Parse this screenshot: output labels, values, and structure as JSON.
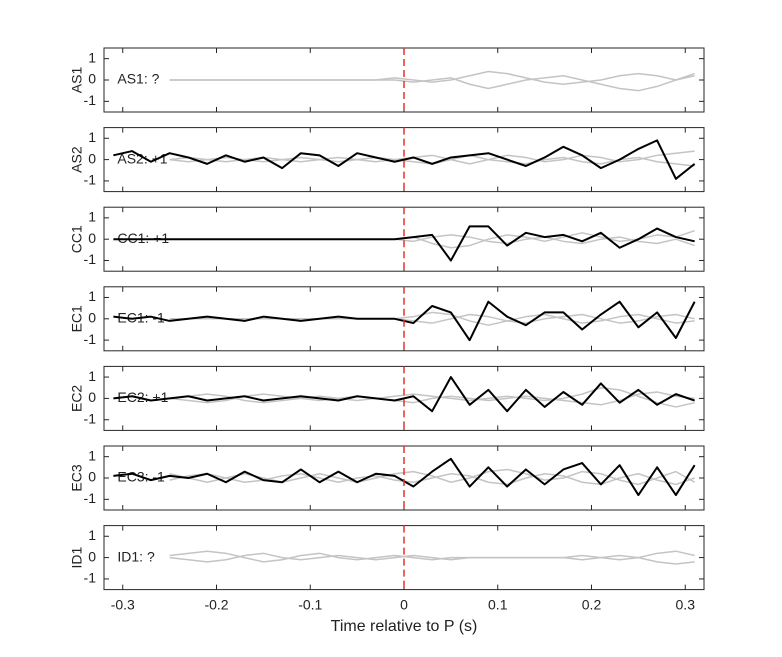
{
  "chart_data": {
    "type": "line",
    "xlabel": "Time relative to P (s)",
    "x": [
      -0.31,
      -0.29,
      -0.27,
      -0.25,
      -0.23,
      -0.21,
      -0.19,
      -0.17,
      -0.15,
      -0.13,
      -0.11,
      -0.09,
      -0.07,
      -0.05,
      -0.03,
      -0.01,
      0.01,
      0.03,
      0.05,
      0.07,
      0.09,
      0.11,
      0.13,
      0.15,
      0.17,
      0.19,
      0.21,
      0.23,
      0.25,
      0.27,
      0.29,
      0.31
    ],
    "xlim": [
      -0.32,
      0.32
    ],
    "xticks": [
      -0.3,
      -0.2,
      -0.1,
      0,
      0.1,
      0.2,
      0.3
    ],
    "ylim": [
      -1.5,
      1.5
    ],
    "yticks": [
      -1,
      0,
      1
    ],
    "reference_line": {
      "x": 0,
      "color": "#e8302a"
    },
    "panels": [
      {
        "ylabel": "AS1",
        "annotation": {
          "text": "AS1: ?",
          "color": "#9a9a9a"
        },
        "series": [
          {
            "color": "#c4c4c4",
            "values": [
              null,
              null,
              null,
              0,
              0,
              0,
              0,
              0,
              0,
              0,
              0,
              0,
              0,
              0,
              0,
              0.1,
              0,
              -0.1,
              0,
              0.2,
              0.4,
              0.3,
              0.1,
              -0.1,
              -0.2,
              -0.1,
              0,
              0.2,
              0.3,
              0.2,
              0,
              0.2
            ]
          },
          {
            "color": "#c4c4c4",
            "values": [
              null,
              null,
              null,
              0,
              0,
              0,
              0,
              0,
              0,
              0,
              0,
              0,
              0,
              0,
              0,
              0,
              -0.1,
              0,
              0.1,
              -0.2,
              -0.4,
              -0.2,
              0,
              0.1,
              0.2,
              0,
              -0.2,
              -0.4,
              -0.5,
              -0.3,
              0,
              0.3
            ]
          }
        ]
      },
      {
        "ylabel": "AS2",
        "annotation": {
          "text": "AS2: +1",
          "color": "#c0141b"
        },
        "series": [
          {
            "color": "#c4c4c4",
            "values": [
              null,
              null,
              null,
              0,
              0.1,
              0,
              -0.1,
              0,
              0.1,
              0,
              -0.1,
              0,
              0.1,
              0,
              -0.1,
              0,
              0.1,
              0.2,
              0,
              -0.2,
              0,
              0.2,
              0.1,
              -0.1,
              0,
              0.2,
              0.1,
              -0.1,
              0,
              0.2,
              0.3,
              0.4
            ]
          },
          {
            "color": "#c4c4c4",
            "values": [
              null,
              null,
              null,
              0,
              -0.1,
              0,
              0.1,
              0,
              -0.1,
              0,
              0.1,
              0,
              -0.1,
              0,
              0.1,
              0,
              -0.1,
              -0.2,
              0,
              0.2,
              0,
              -0.1,
              -0.2,
              0,
              0.1,
              -0.1,
              -0.2,
              0,
              0.1,
              -0.1,
              -0.2,
              -0.3
            ]
          },
          {
            "color": "#000000",
            "values": [
              0.2,
              0.4,
              -0.1,
              0.3,
              0.1,
              -0.2,
              0.2,
              -0.1,
              0.1,
              -0.4,
              0.3,
              0.2,
              -0.3,
              0.3,
              0.1,
              -0.1,
              0.1,
              -0.2,
              0.1,
              0.2,
              0.3,
              0,
              -0.3,
              0.1,
              0.6,
              0.2,
              -0.4,
              0,
              0.5,
              0.9,
              -0.9,
              -0.2
            ]
          }
        ]
      },
      {
        "ylabel": "CC1",
        "annotation": {
          "text": "CC1: +1",
          "color": "#c0141b"
        },
        "series": [
          {
            "color": "#c4c4c4",
            "values": [
              null,
              null,
              null,
              0,
              0,
              0,
              0,
              0,
              0,
              0,
              0,
              0,
              0,
              0,
              0,
              0,
              0.1,
              -0.2,
              -0.4,
              -0.3,
              0,
              0.2,
              0.1,
              -0.1,
              0.1,
              0.3,
              0.1,
              -0.1,
              0,
              0.2,
              0.1,
              0.4
            ]
          },
          {
            "color": "#c4c4c4",
            "values": [
              null,
              null,
              null,
              0,
              0,
              0,
              0,
              0,
              0,
              0,
              0,
              0,
              0,
              0,
              0,
              0,
              -0.1,
              0.1,
              0.2,
              0.1,
              -0.1,
              -0.2,
              0,
              0.1,
              -0.1,
              -0.2,
              0,
              0.1,
              -0.1,
              -0.2,
              0,
              -0.3
            ]
          },
          {
            "color": "#000000",
            "values": [
              0,
              0,
              0,
              0,
              0,
              0,
              0,
              0,
              0,
              0,
              0,
              0,
              0,
              0,
              0,
              0,
              0.1,
              0.2,
              -1,
              0.6,
              0.6,
              -0.3,
              0.3,
              0.1,
              0.2,
              -0.1,
              0.3,
              -0.4,
              0,
              0.5,
              0.1,
              -0.1
            ]
          }
        ]
      },
      {
        "ylabel": "EC1",
        "annotation": {
          "text": "EC1: -1",
          "color": "#1a1aa6"
        },
        "series": [
          {
            "color": "#c4c4c4",
            "values": [
              null,
              null,
              null,
              0,
              0,
              0,
              0,
              0,
              0,
              0,
              0,
              0,
              0,
              0,
              0,
              0,
              0.1,
              0.3,
              0.2,
              -0.1,
              -0.3,
              -0.1,
              0.1,
              0.2,
              0,
              -0.2,
              -0.1,
              0.1,
              0.2,
              0,
              -0.2,
              -0.1
            ]
          },
          {
            "color": "#c4c4c4",
            "values": [
              null,
              null,
              null,
              0,
              0,
              0,
              0,
              0,
              0,
              0,
              0,
              0,
              0,
              0,
              0,
              0,
              -0.1,
              -0.2,
              0,
              0.2,
              0.1,
              -0.1,
              -0.2,
              0,
              0.1,
              0.2,
              0,
              -0.2,
              -0.1,
              0.1,
              0.2,
              0
            ]
          },
          {
            "color": "#000000",
            "values": [
              0.1,
              0,
              0.1,
              -0.1,
              0,
              0.1,
              0,
              -0.1,
              0.1,
              0,
              -0.1,
              0,
              0.1,
              0,
              0,
              0,
              -0.2,
              0.6,
              0.3,
              -1,
              0.8,
              0.1,
              -0.3,
              0.3,
              0.3,
              -0.5,
              0.2,
              0.8,
              -0.4,
              0.3,
              -0.9,
              0.8
            ]
          }
        ]
      },
      {
        "ylabel": "EC2",
        "annotation": {
          "text": "EC2: +1",
          "color": "#c0141b"
        },
        "series": [
          {
            "color": "#c4c4c4",
            "values": [
              null,
              null,
              null,
              0,
              0.1,
              0.2,
              0.1,
              -0.1,
              -0.2,
              -0.1,
              0,
              0.1,
              0,
              -0.1,
              0,
              0.1,
              0.2,
              0.1,
              0,
              -0.1,
              0,
              0.1,
              0,
              -0.1,
              0,
              0.2,
              0.5,
              0.4,
              0.1,
              -0.2,
              -0.4,
              -0.2
            ]
          },
          {
            "color": "#c4c4c4",
            "values": [
              null,
              null,
              null,
              0,
              -0.1,
              -0.2,
              -0.1,
              0.1,
              0.2,
              0.1,
              0,
              -0.1,
              0,
              0.1,
              0,
              -0.1,
              -0.2,
              0,
              0.1,
              0,
              -0.1,
              0,
              0.1,
              0,
              -0.1,
              -0.2,
              -0.3,
              -0.1,
              0.2,
              0.3,
              0.1,
              0
            ]
          },
          {
            "color": "#000000",
            "values": [
              0,
              0.1,
              -0.1,
              0,
              0.1,
              -0.1,
              0,
              0.1,
              -0.1,
              0,
              0.1,
              0,
              -0.1,
              0.1,
              0,
              -0.1,
              0.1,
              -0.6,
              1,
              -0.3,
              0.4,
              -0.6,
              0.4,
              -0.4,
              0.3,
              -0.3,
              0.7,
              -0.2,
              0.4,
              -0.3,
              0.2,
              -0.1
            ]
          }
        ]
      },
      {
        "ylabel": "EC3",
        "annotation": {
          "text": "EC3: -1",
          "color": "#1a1aa6"
        },
        "series": [
          {
            "color": "#c4c4c4",
            "values": [
              null,
              null,
              null,
              0.2,
              0,
              -0.2,
              0,
              0.2,
              0,
              -0.2,
              0,
              0.2,
              0,
              -0.2,
              0,
              0.2,
              0.3,
              0.1,
              -0.2,
              0,
              0.3,
              0.4,
              0.2,
              -0.1,
              0,
              0.3,
              0.2,
              -0.1,
              -0.3,
              0,
              0.3,
              -0.2
            ]
          },
          {
            "color": "#c4c4c4",
            "values": [
              null,
              null,
              null,
              -0.1,
              0.1,
              0.2,
              0,
              -0.2,
              -0.1,
              0.1,
              0.2,
              0,
              -0.2,
              0,
              0.1,
              -0.1,
              -0.2,
              0,
              0.2,
              0.1,
              -0.2,
              -0.3,
              0,
              0.2,
              0.1,
              -0.2,
              -0.3,
              0,
              0.2,
              -0.1,
              -0.3,
              0
            ]
          },
          {
            "color": "#000000",
            "values": [
              0.1,
              0.2,
              -0.1,
              0.1,
              0,
              0.2,
              -0.2,
              0.3,
              -0.1,
              -0.2,
              0.4,
              -0.2,
              0.3,
              -0.2,
              0.2,
              0.1,
              -0.4,
              0.3,
              0.9,
              -0.4,
              0.5,
              -0.4,
              0.4,
              -0.3,
              0.4,
              0.7,
              -0.3,
              0.6,
              -0.8,
              0.5,
              -0.8,
              0.6
            ]
          }
        ]
      },
      {
        "ylabel": "ID1",
        "annotation": {
          "text": "ID1: ?",
          "color": "#9a9a9a"
        },
        "series": [
          {
            "color": "#c4c4c4",
            "values": [
              null,
              null,
              null,
              0.1,
              0.2,
              0.3,
              0.2,
              0,
              -0.2,
              -0.1,
              0.1,
              0.2,
              0,
              -0.1,
              0,
              0.1,
              0,
              -0.1,
              0,
              0,
              0,
              0,
              0,
              0,
              0,
              0.1,
              0,
              -0.1,
              0,
              0.2,
              0.3,
              0.1
            ]
          },
          {
            "color": "#c4c4c4",
            "values": [
              null,
              null,
              null,
              0,
              -0.1,
              -0.2,
              -0.1,
              0.1,
              0.2,
              0,
              -0.1,
              0,
              0.1,
              0,
              -0.1,
              0,
              0.1,
              0,
              -0.1,
              0,
              0,
              0,
              0,
              0,
              0,
              -0.1,
              0,
              0.1,
              0,
              -0.2,
              -0.3,
              -0.2
            ]
          }
        ]
      }
    ]
  }
}
